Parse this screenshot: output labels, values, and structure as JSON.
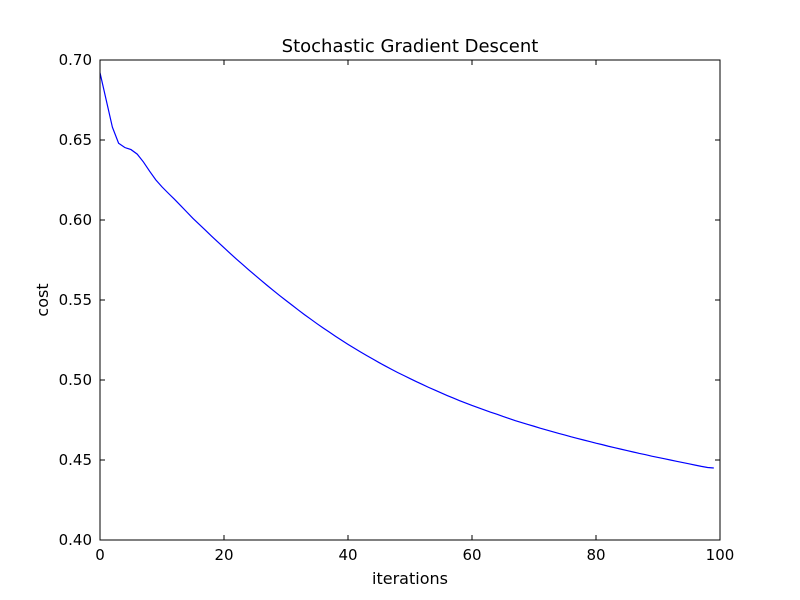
{
  "chart_data": {
    "type": "line",
    "title": "Stochastic Gradient Descent",
    "xlabel": "iterations",
    "ylabel": "cost",
    "xlim": [
      0,
      100
    ],
    "ylim": [
      0.4,
      0.7
    ],
    "xticks": [
      0,
      20,
      40,
      60,
      80,
      100
    ],
    "xtick_labels": [
      "0",
      "20",
      "40",
      "60",
      "80",
      "100"
    ],
    "yticks": [
      0.4,
      0.45,
      0.5,
      0.55,
      0.6,
      0.65,
      0.7
    ],
    "ytick_labels": [
      "0.40",
      "0.45",
      "0.50",
      "0.55",
      "0.60",
      "0.65",
      "0.70"
    ],
    "grid": false,
    "series": [
      {
        "color": "#0000ff",
        "x": [
          0,
          1,
          2,
          3,
          4,
          5,
          6,
          7,
          8,
          9,
          10,
          11,
          12,
          13,
          14,
          15,
          16,
          17,
          18,
          19,
          20,
          21,
          22,
          23,
          24,
          25,
          26,
          27,
          28,
          29,
          30,
          31,
          32,
          33,
          34,
          35,
          36,
          37,
          38,
          39,
          40,
          41,
          42,
          43,
          44,
          45,
          46,
          47,
          48,
          49,
          50,
          51,
          52,
          53,
          54,
          55,
          56,
          57,
          58,
          59,
          60,
          61,
          62,
          63,
          64,
          65,
          66,
          67,
          68,
          69,
          70,
          71,
          72,
          73,
          74,
          75,
          76,
          77,
          78,
          79,
          80,
          81,
          82,
          83,
          84,
          85,
          86,
          87,
          88,
          89,
          90,
          91,
          92,
          93,
          94,
          95,
          96,
          97,
          98,
          99
        ],
        "y": [
          0.692,
          0.675,
          0.658,
          0.648,
          0.6453,
          0.644,
          0.6412,
          0.6363,
          0.6305,
          0.6251,
          0.6207,
          0.6168,
          0.613,
          0.609,
          0.605,
          0.601,
          0.5973,
          0.5936,
          0.5899,
          0.5863,
          0.5827,
          0.5791,
          0.5756,
          0.5722,
          0.5688,
          0.5655,
          0.5622,
          0.559,
          0.5558,
          0.5527,
          0.5497,
          0.5467,
          0.5437,
          0.5408,
          0.538,
          0.5352,
          0.5325,
          0.5299,
          0.5273,
          0.5248,
          0.5223,
          0.5199,
          0.5176,
          0.5153,
          0.5131,
          0.5109,
          0.5088,
          0.5067,
          0.5047,
          0.5028,
          0.5009,
          0.499,
          0.4972,
          0.4954,
          0.4937,
          0.492,
          0.4903,
          0.4887,
          0.4871,
          0.4856,
          0.4841,
          0.4827,
          0.4813,
          0.4799,
          0.4786,
          0.4772,
          0.4759,
          0.4746,
          0.4734,
          0.4722,
          0.4711,
          0.4699,
          0.4688,
          0.4677,
          0.4666,
          0.4656,
          0.4645,
          0.4635,
          0.4625,
          0.4615,
          0.4605,
          0.4596,
          0.4586,
          0.4577,
          0.4568,
          0.4559,
          0.455,
          0.4541,
          0.4533,
          0.4524,
          0.4516,
          0.4508,
          0.45,
          0.4492,
          0.4484,
          0.4476,
          0.4468,
          0.446,
          0.4453,
          0.445
        ]
      }
    ]
  }
}
